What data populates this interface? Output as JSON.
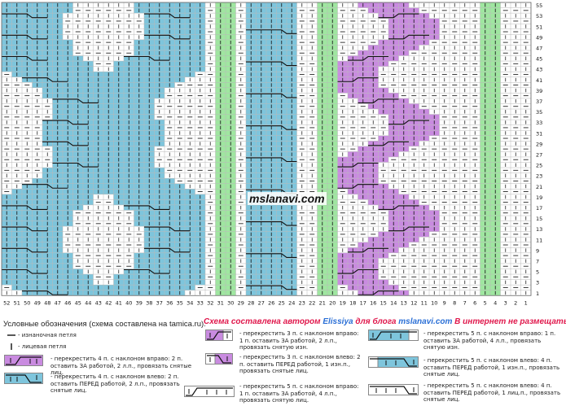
{
  "watermark": "mslanavi.com",
  "row_numbers": [
    55,
    53,
    51,
    49,
    47,
    45,
    43,
    41,
    39,
    37,
    35,
    33,
    31,
    29,
    27,
    25,
    23,
    21,
    19,
    17,
    15,
    13,
    11,
    9,
    7,
    5,
    3,
    1
  ],
  "column_numbers": [
    52,
    51,
    50,
    49,
    48,
    47,
    46,
    45,
    44,
    43,
    42,
    41,
    40,
    39,
    38,
    37,
    36,
    35,
    34,
    33,
    32,
    31,
    30,
    29,
    28,
    27,
    26,
    25,
    24,
    23,
    22,
    21,
    20,
    19,
    18,
    17,
    16,
    15,
    14,
    13,
    12,
    11,
    10,
    9,
    8,
    7,
    6,
    5,
    4,
    3,
    2,
    1
  ],
  "colors": {
    "blue": "#7ec5dc",
    "purple": "#c98be0",
    "green": "#9fe6a0",
    "grid": "#b8b8b8"
  },
  "legend": {
    "title": "Условные обозначения (схема составлена на tamica.ru):",
    "credit_prefix": "Схема составлена автором ",
    "credit_author": "Elissiya",
    "credit_middle": " для блога ",
    "credit_blog": "mslanavi.com",
    "credit_suffix": " В интернет не размещать",
    "purl": "- изнаночная петля",
    "knit": "- лицевая петля",
    "purple4": "- перекрестить 4 п. с наклоном вправо: 2 п. оставить ЗА работой, 2 л.п., провязать снятые лиц.",
    "blue4": "- перекрестить 4 п. с наклоном влево: 2 п. оставить ПЕРЕД работой, 2 л.п., провязать снятые лиц.",
    "cross3r": "- перекрестить 3 п. с наклоном вправо: 1 п. оставить ЗА работой, 2 л.п., провязать снятую изн.",
    "cross3l": "- перекрестить 3 п. с наклоном влево: 2 п. оставить ПЕРЕД работой, 1 изн.п., провязать снятые лиц.",
    "cross5r": "- перекрестить 5 п. с наклоном вправо: 1 п. оставить ЗА работой, 4 л.п., провязать снятую лиц.",
    "cross5r_b": "- перекрестить 5 п. с наклоном вправо: 1 п. оставить ЗА работой, 4 л.п., провязать снятую изн.",
    "cross5l": "- перекрестить 5 п. с наклоном влево: 4 п. оставить ПЕРЕД работой, 1 изн.п., провязать снятые лиц.",
    "cross5l_b": "- перекрестить 5 п. с наклоном влево: 4 п. оставить ПЕРЕД работой, 1 лиц.п., провязать снятые лиц."
  }
}
